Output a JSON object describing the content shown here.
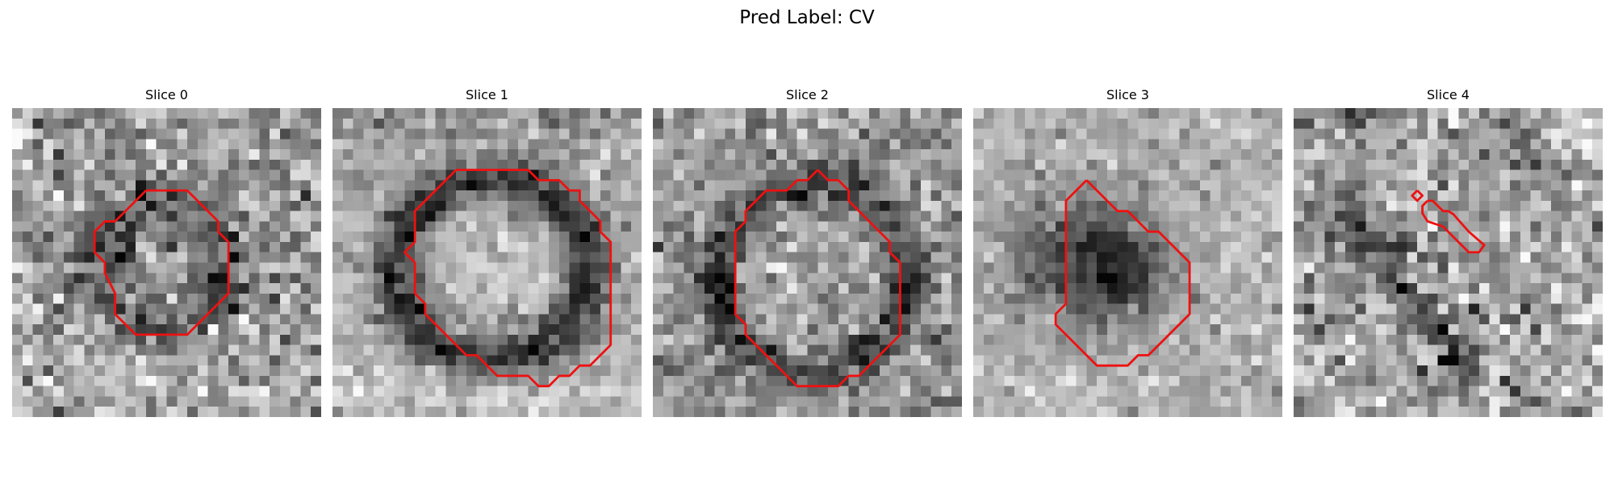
{
  "figure": {
    "title": "Pred Label: CV"
  },
  "panels": [
    {
      "title": "Slice 0",
      "image": "noisy grayscale micrograph patch, faint dark ring",
      "contours": [
        [
          [
            13,
            8
          ],
          [
            17,
            8
          ],
          [
            20,
            11
          ],
          [
            20,
            12
          ],
          [
            21,
            13
          ],
          [
            21,
            18
          ],
          [
            17,
            22
          ],
          [
            12,
            22
          ],
          [
            10,
            20
          ],
          [
            10,
            18
          ],
          [
            9,
            16
          ],
          [
            9,
            15
          ],
          [
            8,
            14
          ],
          [
            8,
            12
          ],
          [
            9,
            11
          ],
          [
            10,
            11
          ],
          [
            13,
            8
          ]
        ]
      ]
    },
    {
      "title": "Slice 1",
      "image": "grayscale micrograph patch, dark ring around bright interior",
      "contours": [
        [
          [
            12,
            6
          ],
          [
            19,
            6
          ],
          [
            20,
            7
          ],
          [
            22,
            7
          ],
          [
            23,
            8
          ],
          [
            24,
            8
          ],
          [
            24,
            9
          ],
          [
            26,
            11
          ],
          [
            26,
            12
          ],
          [
            27,
            13
          ],
          [
            27,
            23
          ],
          [
            25,
            25
          ],
          [
            24,
            25
          ],
          [
            23,
            26
          ],
          [
            22,
            26
          ],
          [
            21,
            27
          ],
          [
            20,
            27
          ],
          [
            19,
            26
          ],
          [
            16,
            26
          ],
          [
            15,
            25
          ],
          [
            14,
            24
          ],
          [
            13,
            24
          ],
          [
            12,
            23
          ],
          [
            11,
            22
          ],
          [
            10,
            21
          ],
          [
            9,
            20
          ],
          [
            9,
            19
          ],
          [
            8,
            18
          ],
          [
            8,
            15
          ],
          [
            7,
            14
          ],
          [
            8,
            13
          ],
          [
            8,
            10
          ],
          [
            9,
            9
          ],
          [
            10,
            8
          ],
          [
            11,
            7
          ],
          [
            12,
            6
          ]
        ]
      ]
    },
    {
      "title": "Slice 2",
      "image": "grayscale micrograph patch, dark ring with lighter centre",
      "contours": [
        [
          [
            16,
            6
          ],
          [
            15,
            7
          ],
          [
            14,
            7
          ],
          [
            13,
            8
          ],
          [
            11,
            8
          ],
          [
            10,
            9
          ],
          [
            9,
            10
          ],
          [
            9,
            11
          ],
          [
            8,
            12
          ],
          [
            8,
            20
          ],
          [
            9,
            21
          ],
          [
            9,
            22
          ],
          [
            10,
            23
          ],
          [
            11,
            24
          ],
          [
            12,
            25
          ],
          [
            13,
            26
          ],
          [
            14,
            27
          ],
          [
            18,
            27
          ],
          [
            19,
            26
          ],
          [
            20,
            26
          ],
          [
            21,
            25
          ],
          [
            22,
            24
          ],
          [
            23,
            23
          ],
          [
            24,
            22
          ],
          [
            24,
            15
          ],
          [
            23,
            14
          ],
          [
            23,
            13
          ],
          [
            22,
            12
          ],
          [
            21,
            11
          ],
          [
            20,
            10
          ],
          [
            19,
            9
          ],
          [
            19,
            8
          ],
          [
            18,
            7
          ],
          [
            17,
            7
          ],
          [
            16,
            6
          ]
        ]
      ]
    },
    {
      "title": "Slice 3",
      "image": "grayscale micrograph patch, dark blob on lighter background",
      "contours": [
        [
          [
            11,
            7
          ],
          [
            14,
            10
          ],
          [
            15,
            10
          ],
          [
            16,
            11
          ],
          [
            17,
            12
          ],
          [
            18,
            12
          ],
          [
            19,
            13
          ],
          [
            20,
            14
          ],
          [
            21,
            15
          ],
          [
            21,
            20
          ],
          [
            20,
            21
          ],
          [
            19,
            22
          ],
          [
            18,
            23
          ],
          [
            17,
            24
          ],
          [
            16,
            24
          ],
          [
            15,
            25
          ],
          [
            12,
            25
          ],
          [
            11,
            24
          ],
          [
            10,
            23
          ],
          [
            9,
            22
          ],
          [
            8,
            21
          ],
          [
            8,
            20
          ],
          [
            9,
            19
          ],
          [
            9,
            13
          ],
          [
            9,
            9
          ],
          [
            11,
            7
          ]
        ]
      ]
    },
    {
      "title": "Slice 4",
      "image": "noisy grayscale micrograph patch, diagonal dark streak",
      "contours": [
        [
          [
            12,
            8
          ],
          [
            12.5,
            8.5
          ],
          [
            12,
            9
          ],
          [
            11.5,
            8.5
          ],
          [
            12,
            8
          ]
        ],
        [
          [
            13,
            9
          ],
          [
            13.5,
            9
          ],
          [
            14.5,
            10
          ],
          [
            15,
            10
          ],
          [
            15.5,
            10.3
          ],
          [
            17,
            12
          ],
          [
            18.5,
            13.3
          ],
          [
            18,
            14
          ],
          [
            17,
            14
          ],
          [
            16,
            13
          ],
          [
            14.5,
            11.5
          ],
          [
            13,
            11
          ],
          [
            12.5,
            10.2
          ],
          [
            12.5,
            9.5
          ],
          [
            13,
            9
          ]
        ]
      ]
    }
  ],
  "style": {
    "contour_color": "#ee1111"
  }
}
